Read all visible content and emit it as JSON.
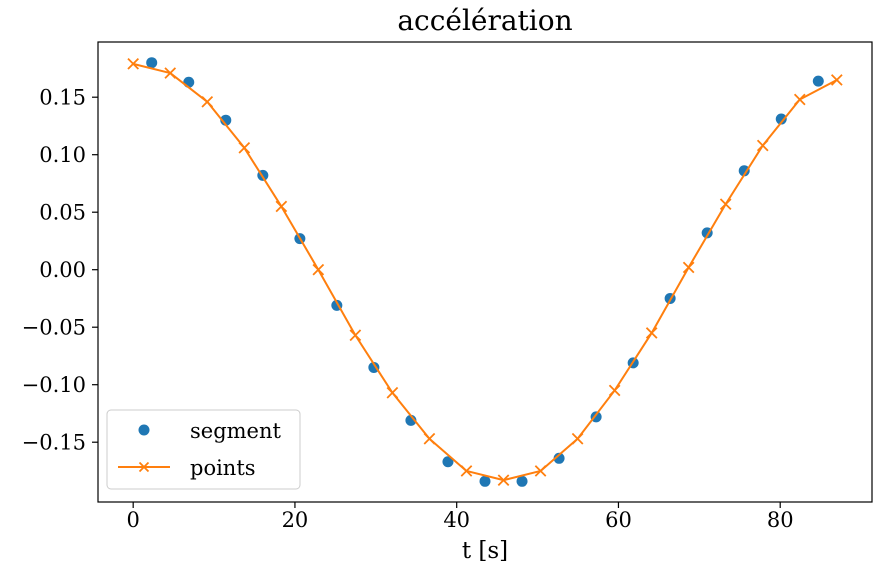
{
  "figure": {
    "background": "#ffffff"
  },
  "chart_data": {
    "type": "line",
    "title": "accélération",
    "xlabel": "t [s]",
    "ylabel": "",
    "grid": false,
    "xlim": [
      -4.35,
      91.35
    ],
    "ylim": [
      -0.202,
      0.198
    ],
    "xticks": {
      "values": [
        0,
        20,
        40,
        60,
        80
      ],
      "labels": [
        "0",
        "20",
        "40",
        "60",
        "80"
      ]
    },
    "yticks": {
      "values": [
        0.15,
        0.1,
        0.05,
        0.0,
        -0.05,
        -0.1,
        -0.15
      ],
      "labels": [
        "0.15",
        "0.10",
        "0.05",
        "0.00",
        "−0.05",
        "−0.10",
        "−0.15"
      ]
    },
    "legend": {
      "position": "lower left",
      "entries": [
        "segment",
        "points"
      ]
    },
    "series": [
      {
        "name": "segment",
        "type": "scatter",
        "marker": "circle",
        "color": "#1f77b4",
        "x": [
          2.29,
          6.87,
          11.45,
          16.03,
          20.61,
          25.18,
          29.76,
          34.34,
          38.92,
          43.5,
          48.08,
          52.66,
          57.24,
          61.82,
          66.39,
          70.97,
          75.55,
          80.13,
          84.71
        ],
        "y": [
          0.18,
          0.163,
          0.13,
          0.082,
          0.027,
          -0.031,
          -0.085,
          -0.131,
          -0.167,
          -0.184,
          -0.184,
          -0.164,
          -0.128,
          -0.081,
          -0.025,
          0.032,
          0.086,
          0.131,
          0.164
        ]
      },
      {
        "name": "points",
        "type": "line",
        "marker": "x",
        "color": "#ff7f0e",
        "x": [
          0,
          4.58,
          9.16,
          13.74,
          18.32,
          22.89,
          27.47,
          32.05,
          36.63,
          41.21,
          45.79,
          50.37,
          54.95,
          59.53,
          64.11,
          68.68,
          73.26,
          77.84,
          82.42,
          87
        ],
        "y": [
          0.179,
          0.171,
          0.146,
          0.106,
          0.055,
          0.0,
          -0.057,
          -0.107,
          -0.147,
          -0.175,
          -0.183,
          -0.175,
          -0.147,
          -0.105,
          -0.055,
          0.002,
          0.057,
          0.108,
          0.148,
          0.165
        ]
      }
    ]
  }
}
